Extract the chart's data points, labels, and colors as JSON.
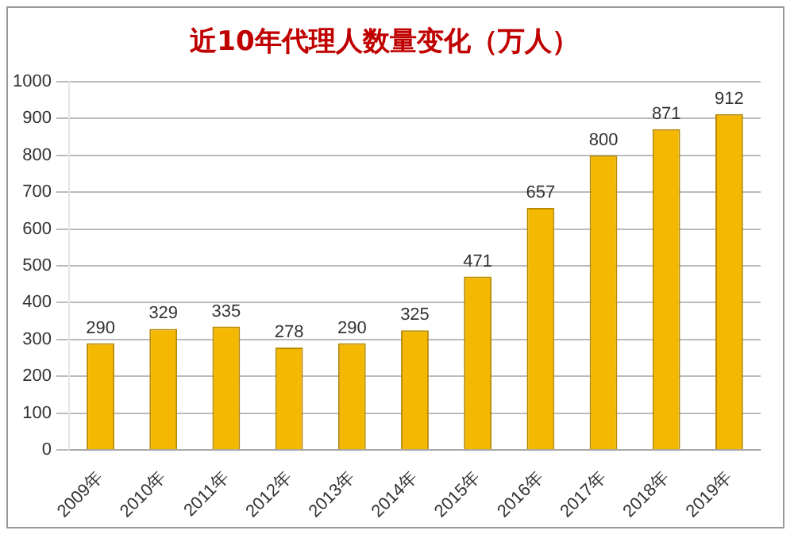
{
  "chart_data": {
    "type": "bar",
    "title": "近10年代理人数量变化（万人）",
    "categories": [
      "2009年",
      "2010年",
      "2011年",
      "2012年",
      "2013年",
      "2014年",
      "2015年",
      "2016年",
      "2017年",
      "2018年",
      "2019年"
    ],
    "values": [
      290,
      329,
      335,
      278,
      290,
      325,
      471,
      657,
      800,
      871,
      912
    ],
    "color": "#f5b800",
    "ylim": [
      0,
      1000
    ],
    "yticks": [
      0,
      100,
      200,
      300,
      400,
      500,
      600,
      700,
      800,
      900,
      1000
    ],
    "grid": "y",
    "data_labels": true,
    "legend": false
  }
}
